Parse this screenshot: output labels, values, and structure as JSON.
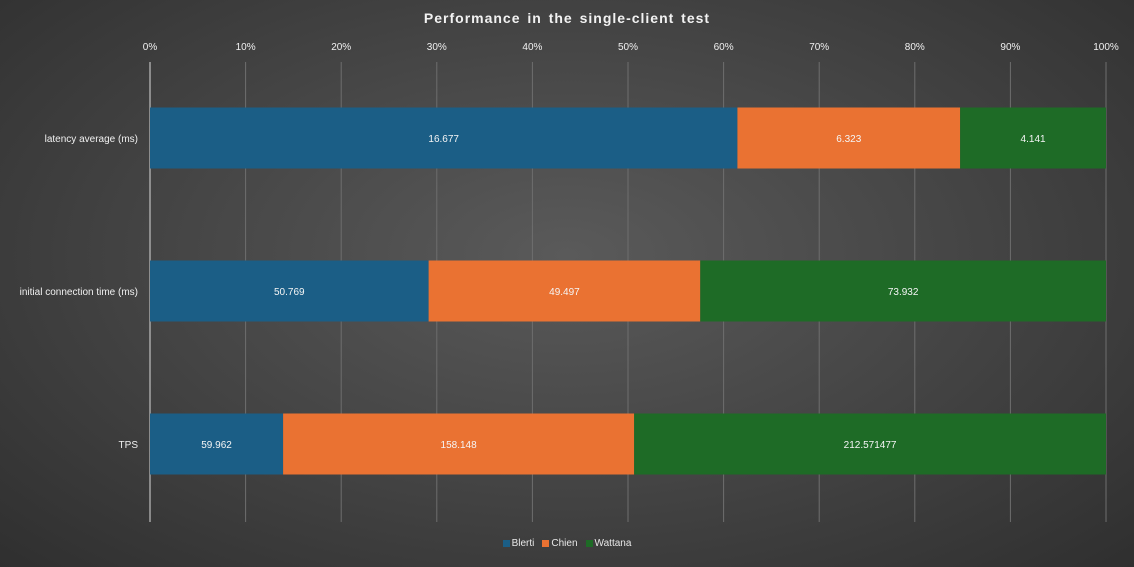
{
  "chart_data": {
    "type": "bar",
    "orientation": "horizontal",
    "stacking": "percent",
    "title": "Performance in the single-client  test",
    "categories": [
      "latency average (ms)",
      "initial connection time (ms)",
      "TPS"
    ],
    "series": [
      {
        "name": "Blerti",
        "color": "#1b5e86",
        "values": [
          16.677,
          50.769,
          59.962
        ],
        "labels": [
          "16.677",
          "50.769",
          "59.962"
        ]
      },
      {
        "name": "Chien",
        "color": "#ea7232",
        "values": [
          6.323,
          49.497,
          158.148
        ],
        "labels": [
          "6.323",
          "49.497",
          "158.148"
        ]
      },
      {
        "name": "Wattana",
        "color": "#1e6b26",
        "values": [
          4.141,
          73.932,
          212.571477
        ],
        "labels": [
          "4.141",
          "73.932",
          "212.571477"
        ]
      }
    ],
    "x_ticks": [
      "0%",
      "10%",
      "20%",
      "30%",
      "40%",
      "50%",
      "60%",
      "70%",
      "80%",
      "90%",
      "100%"
    ],
    "xlim": [
      0,
      100
    ],
    "x_axis_position": "top",
    "grid": true,
    "legend": "bottom"
  }
}
